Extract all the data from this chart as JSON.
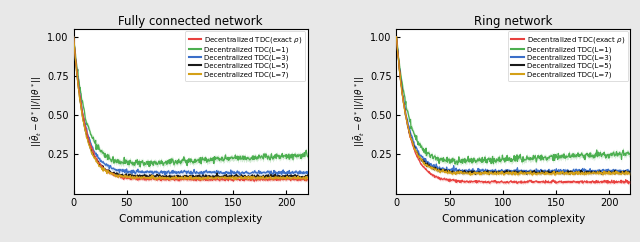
{
  "title_left": "Fully connected network",
  "title_right": "Ring network",
  "xlabel": "Communication complexity",
  "ylabel": "$||\\bar{\\theta}_t - \\theta^*||/||\\theta^*||$",
  "xlim": [
    0,
    220
  ],
  "ylim": [
    0.0,
    1.05
  ],
  "yticks": [
    0.25,
    0.5,
    0.75,
    1.0
  ],
  "xticks": [
    0,
    50,
    100,
    150,
    200
  ],
  "legend_labels": [
    "Decentralized TDC(exact $\\rho$)",
    "Decentralized TDC(L=1)",
    "Decentralized TDC(L=3)",
    "Decentralized TDC(L=5)",
    "Decentralized TDC(L=7)"
  ],
  "line_colors": [
    "#e8413f",
    "#4caf50",
    "#3b6fc9",
    "#1a1a1a",
    "#d4a017"
  ],
  "fig_facecolor": "#e8e8e8",
  "axes_facecolor": "#ffffff"
}
